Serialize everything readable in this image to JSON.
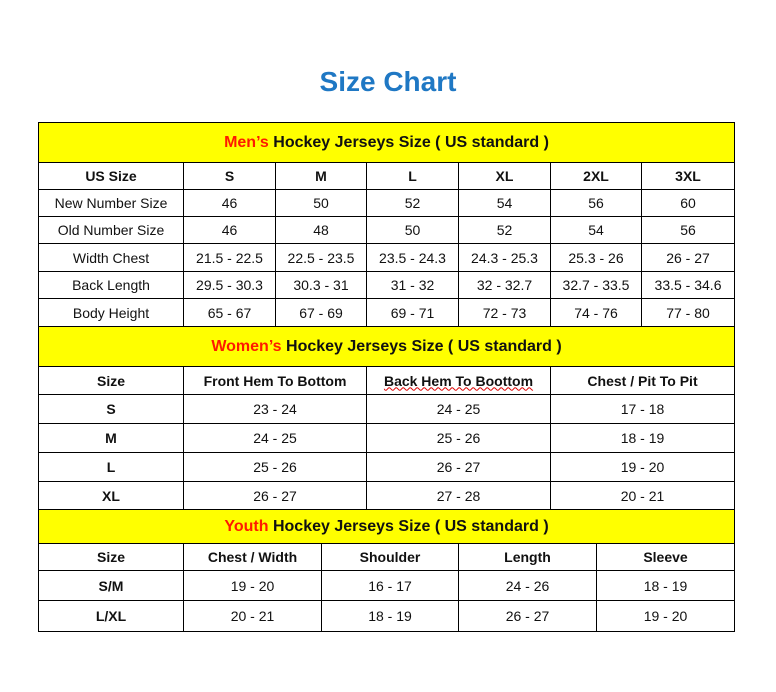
{
  "title": "Size Chart",
  "colors": {
    "title": "#1f78c4",
    "header_bg": "#ffff00",
    "accent": "#ff1a00"
  },
  "men": {
    "header_accent": "Men’s",
    "header_rest": " Hockey Jerseys Size ( US standard )",
    "columns": [
      "US Size",
      "S",
      "M",
      "L",
      "XL",
      "2XL",
      "3XL"
    ],
    "rows": [
      [
        "New Number Size",
        "46",
        "50",
        "52",
        "54",
        "56",
        "60"
      ],
      [
        "Old Number Size",
        "46",
        "48",
        "50",
        "52",
        "54",
        "56"
      ],
      [
        "Width Chest",
        "21.5 - 22.5",
        "22.5 - 23.5",
        "23.5 - 24.3",
        "24.3 - 25.3",
        "25.3 - 26",
        "26 - 27"
      ],
      [
        "Back Length",
        "29.5 - 30.3",
        "30.3 - 31",
        "31 - 32",
        "32 - 32.7",
        "32.7 - 33.5",
        "33.5 - 34.6"
      ],
      [
        "Body Height",
        "65 - 67",
        "67 - 69",
        "69 - 71",
        "72 - 73",
        "74 - 76",
        "77 - 80"
      ]
    ]
  },
  "women": {
    "header_accent": "Women’s",
    "header_rest": " Hockey Jerseys Size ( US standard )",
    "columns": [
      "Size",
      "Front Hem To Bottom",
      "Back Hem To Boottom",
      "Chest / Pit To Pit"
    ],
    "rows": [
      [
        "S",
        "23 - 24",
        "24 - 25",
        "17 - 18"
      ],
      [
        "M",
        "24 - 25",
        "25 - 26",
        "18 - 19"
      ],
      [
        "L",
        "25 - 26",
        "26 - 27",
        "19 - 20"
      ],
      [
        "XL",
        "26 - 27",
        "27 - 28",
        "20 - 21"
      ]
    ]
  },
  "youth": {
    "header_accent": "Youth",
    "header_rest": " Hockey Jerseys Size ( US standard )",
    "columns": [
      "Size",
      "Chest / Width",
      "Shoulder",
      "Length",
      "Sleeve"
    ],
    "rows": [
      [
        "S/M",
        "19 - 20",
        "16 - 17",
        "24 - 26",
        "18 - 19"
      ],
      [
        "L/XL",
        "20 - 21",
        "18 - 19",
        "26 - 27",
        "19 - 20"
      ]
    ]
  }
}
